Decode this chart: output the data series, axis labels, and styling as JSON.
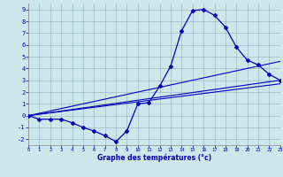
{
  "xlabel": "Graphe des températures (°c)",
  "xlim": [
    0,
    23
  ],
  "ylim": [
    -2.5,
    9.5
  ],
  "xticks": [
    0,
    1,
    2,
    3,
    4,
    5,
    6,
    7,
    8,
    9,
    10,
    11,
    12,
    13,
    14,
    15,
    16,
    17,
    18,
    19,
    20,
    21,
    22,
    23
  ],
  "yticks": [
    -2,
    -1,
    0,
    1,
    2,
    3,
    4,
    5,
    6,
    7,
    8,
    9
  ],
  "bg_color": "#cce8ec",
  "line_color": "#0000bb",
  "grid_color": "#99bbcc",
  "curve_x": [
    0,
    1,
    2,
    3,
    4,
    5,
    6,
    7,
    8,
    9,
    10,
    11,
    12,
    13,
    14,
    15,
    16,
    17,
    18,
    19,
    20,
    21,
    22,
    23
  ],
  "curve_y": [
    0.0,
    -0.3,
    -0.3,
    -0.3,
    -0.6,
    -1.0,
    -1.3,
    -1.7,
    -2.2,
    -1.3,
    1.0,
    1.1,
    2.5,
    4.2,
    7.2,
    8.9,
    9.0,
    8.5,
    7.5,
    5.8,
    4.7,
    4.3,
    3.5,
    3.0
  ],
  "trend_lines": [
    {
      "x": [
        0,
        23
      ],
      "y": [
        0.0,
        4.6
      ]
    },
    {
      "x": [
        0,
        23
      ],
      "y": [
        0.0,
        3.0
      ]
    },
    {
      "x": [
        0,
        23
      ],
      "y": [
        0.0,
        2.7
      ]
    }
  ]
}
